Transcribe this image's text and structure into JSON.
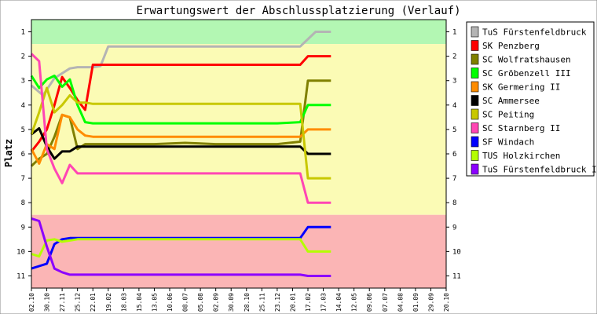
{
  "chart_data": {
    "type": "line",
    "title": "Erwartungswert der Abschlussplatzierung (Verlauf)",
    "ylabel": "Platz",
    "xlabel": "",
    "ylim": [
      0.5,
      11.5
    ],
    "y_inverted": true,
    "yticks": [
      1,
      2,
      3,
      4,
      5,
      6,
      7,
      8,
      9,
      10,
      11
    ],
    "grid": false,
    "legend_position": "right",
    "bands": [
      {
        "from": 0.5,
        "to": 1.5,
        "color": "#b3f7b3"
      },
      {
        "from": 1.5,
        "to": 8.5,
        "color": "#fbfbb5"
      },
      {
        "from": 8.5,
        "to": 11.5,
        "color": "#fbb5b5"
      }
    ],
    "x": [
      "02.10",
      "30.10",
      "27.11",
      "25.12",
      "22.01",
      "19.02",
      "18.03",
      "15.04",
      "13.05",
      "10.06",
      "08.07",
      "05.08",
      "02.09",
      "30.09",
      "28.10",
      "25.11",
      "23.12",
      "20.01",
      "17.02",
      "17.03",
      "14.04",
      "12.05",
      "09.06",
      "07.07",
      "04.08",
      "01.09",
      "29.09",
      "20.10"
    ],
    "series": [
      {
        "name": "TuS Fürstenfeldbruck",
        "color": "#b4b4b4",
        "points": [
          [
            0,
            3.2
          ],
          [
            0.75,
            3.6
          ],
          [
            1.5,
            2.9
          ],
          [
            2.5,
            2.5
          ],
          [
            3,
            2.45
          ],
          [
            4,
            2.45
          ],
          [
            4.5,
            2.4
          ],
          [
            5,
            1.6
          ],
          [
            8,
            1.6
          ],
          [
            10,
            1.6
          ],
          [
            12,
            1.6
          ],
          [
            14,
            1.6
          ],
          [
            16,
            1.6
          ],
          [
            17.5,
            1.6
          ],
          [
            18.5,
            1.0
          ],
          [
            19.5,
            1.0
          ]
        ]
      },
      {
        "name": "SK Penzberg",
        "color": "#ff0000",
        "points": [
          [
            0,
            5.9
          ],
          [
            0.5,
            5.5
          ],
          [
            1,
            5.0
          ],
          [
            1.5,
            4.0
          ],
          [
            2,
            2.85
          ],
          [
            2.5,
            3.3
          ],
          [
            3,
            3.8
          ],
          [
            3.5,
            4.2
          ],
          [
            4,
            2.35
          ],
          [
            8,
            2.35
          ],
          [
            12,
            2.35
          ],
          [
            16,
            2.35
          ],
          [
            17.5,
            2.35
          ],
          [
            18,
            2.0
          ],
          [
            19.5,
            2.0
          ]
        ]
      },
      {
        "name": "SC Wolfratshausen",
        "color": "#808000",
        "points": [
          [
            0,
            6.5
          ],
          [
            0.5,
            6.2
          ],
          [
            1,
            6.0
          ],
          [
            1.5,
            5.3
          ],
          [
            2,
            4.4
          ],
          [
            2.5,
            4.5
          ],
          [
            3,
            5.8
          ],
          [
            3.5,
            5.6
          ],
          [
            4,
            5.6
          ],
          [
            8,
            5.6
          ],
          [
            10,
            5.55
          ],
          [
            12,
            5.6
          ],
          [
            16,
            5.6
          ],
          [
            17.5,
            5.5
          ],
          [
            18,
            3.0
          ],
          [
            19.5,
            3.0
          ]
        ]
      },
      {
        "name": "SC Gröbenzell III",
        "color": "#00ff00",
        "points": [
          [
            0,
            2.8
          ],
          [
            0.5,
            3.3
          ],
          [
            1,
            2.95
          ],
          [
            1.5,
            2.8
          ],
          [
            2,
            3.25
          ],
          [
            2.5,
            2.95
          ],
          [
            3,
            4.0
          ],
          [
            3.5,
            4.7
          ],
          [
            4,
            4.75
          ],
          [
            8,
            4.75
          ],
          [
            12,
            4.75
          ],
          [
            16,
            4.75
          ],
          [
            17.5,
            4.7
          ],
          [
            18,
            4.0
          ],
          [
            19.5,
            4.0
          ]
        ]
      },
      {
        "name": "SK Germering II",
        "color": "#ff8c00",
        "points": [
          [
            0,
            5.8
          ],
          [
            0.5,
            6.4
          ],
          [
            1,
            5.6
          ],
          [
            1.5,
            5.8
          ],
          [
            2,
            4.4
          ],
          [
            2.5,
            4.5
          ],
          [
            3,
            5.0
          ],
          [
            3.5,
            5.25
          ],
          [
            4,
            5.3
          ],
          [
            8,
            5.3
          ],
          [
            12,
            5.3
          ],
          [
            16,
            5.3
          ],
          [
            17.5,
            5.3
          ],
          [
            18,
            5.0
          ],
          [
            19.5,
            5.0
          ]
        ]
      },
      {
        "name": "SC Ammersee",
        "color": "#000000",
        "points": [
          [
            0,
            5.2
          ],
          [
            0.5,
            4.95
          ],
          [
            1,
            5.7
          ],
          [
            1.5,
            6.2
          ],
          [
            2,
            5.9
          ],
          [
            2.5,
            5.9
          ],
          [
            3,
            5.7
          ],
          [
            3.5,
            5.7
          ],
          [
            4,
            5.7
          ],
          [
            8,
            5.7
          ],
          [
            12,
            5.7
          ],
          [
            16,
            5.7
          ],
          [
            17.5,
            5.7
          ],
          [
            18,
            6.0
          ],
          [
            19.5,
            6.0
          ]
        ]
      },
      {
        "name": "SC Peiting",
        "color": "#c8c800",
        "points": [
          [
            0,
            5.2
          ],
          [
            0.5,
            4.3
          ],
          [
            1,
            3.3
          ],
          [
            1.5,
            4.3
          ],
          [
            2,
            4.0
          ],
          [
            2.5,
            3.6
          ],
          [
            3,
            3.9
          ],
          [
            3.5,
            3.9
          ],
          [
            4,
            3.95
          ],
          [
            8,
            3.95
          ],
          [
            12,
            3.95
          ],
          [
            16,
            3.95
          ],
          [
            17.5,
            3.95
          ],
          [
            18,
            7.0
          ],
          [
            19.5,
            7.0
          ]
        ]
      },
      {
        "name": "SC Starnberg II",
        "color": "#ff46b4",
        "points": [
          [
            0,
            1.9
          ],
          [
            0.5,
            2.2
          ],
          [
            1,
            5.8
          ],
          [
            1.5,
            6.6
          ],
          [
            2,
            7.2
          ],
          [
            2.5,
            6.45
          ],
          [
            3,
            6.8
          ],
          [
            3.5,
            6.8
          ],
          [
            4,
            6.8
          ],
          [
            8,
            6.8
          ],
          [
            12,
            6.8
          ],
          [
            16,
            6.8
          ],
          [
            17.5,
            6.8
          ],
          [
            18,
            8.0
          ],
          [
            19.5,
            8.0
          ]
        ]
      },
      {
        "name": "SF Windach",
        "color": "#0000ff",
        "points": [
          [
            0,
            10.7
          ],
          [
            0.5,
            10.6
          ],
          [
            1,
            10.5
          ],
          [
            1.5,
            9.7
          ],
          [
            2,
            9.5
          ],
          [
            2.5,
            9.45
          ],
          [
            3,
            9.45
          ],
          [
            4,
            9.45
          ],
          [
            8,
            9.45
          ],
          [
            12,
            9.45
          ],
          [
            16,
            9.45
          ],
          [
            17.5,
            9.45
          ],
          [
            18,
            9.0
          ],
          [
            19.5,
            9.0
          ]
        ]
      },
      {
        "name": "TUS Holzkirchen",
        "color": "#b4ff00",
        "points": [
          [
            0,
            10.1
          ],
          [
            0.5,
            10.2
          ],
          [
            1,
            9.55
          ],
          [
            1.5,
            9.5
          ],
          [
            2,
            9.6
          ],
          [
            2.5,
            9.55
          ],
          [
            3,
            9.5
          ],
          [
            4,
            9.5
          ],
          [
            8,
            9.5
          ],
          [
            12,
            9.5
          ],
          [
            16,
            9.5
          ],
          [
            17.5,
            9.5
          ],
          [
            18,
            10.0
          ],
          [
            19.5,
            10.0
          ]
        ]
      },
      {
        "name": "TuS Fürstenfeldbruck II",
        "color": "#8c00ff",
        "points": [
          [
            0,
            8.65
          ],
          [
            0.5,
            8.75
          ],
          [
            1,
            9.8
          ],
          [
            1.5,
            10.7
          ],
          [
            2,
            10.85
          ],
          [
            2.5,
            10.95
          ],
          [
            3,
            10.95
          ],
          [
            4,
            10.95
          ],
          [
            8,
            10.95
          ],
          [
            12,
            10.95
          ],
          [
            16,
            10.95
          ],
          [
            17.5,
            10.95
          ],
          [
            18,
            11.0
          ],
          [
            19.5,
            11.0
          ]
        ]
      }
    ]
  }
}
